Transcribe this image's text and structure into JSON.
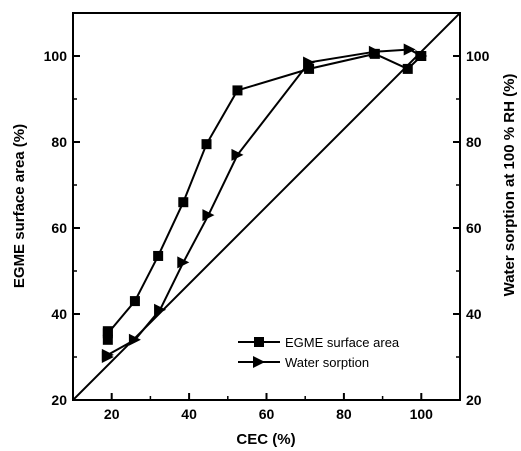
{
  "chart_data": {
    "type": "line",
    "title": "",
    "xlabel": "CEC (%)",
    "ylabel": "EGME surface area (%)",
    "y2label": "Water sorption at 100 % RH (%)",
    "xlim": [
      10,
      110
    ],
    "ylim": [
      20,
      110
    ],
    "y2lim": [
      20,
      110
    ],
    "xticks": [
      "20",
      "40",
      "60",
      "80",
      "100"
    ],
    "yticks": [
      "20",
      "40",
      "60",
      "80",
      "100"
    ],
    "y2ticks": [
      "20",
      "40",
      "60",
      "80",
      "100"
    ],
    "grid": false,
    "legend": {
      "position": "bottom-right"
    },
    "series": [
      {
        "name": "EGME surface area",
        "marker": "square",
        "axis": "left",
        "x": [
          19,
          19,
          19,
          26,
          32,
          38.5,
          44.5,
          52.5,
          71,
          88,
          96.5,
          100
        ],
        "y": [
          34,
          36,
          35.5,
          43,
          53.5,
          66,
          79.5,
          92,
          97,
          100.5,
          97,
          100
        ]
      },
      {
        "name": "Water sorption",
        "marker": "triangle-right",
        "axis": "right",
        "x": [
          19,
          19,
          26,
          32.5,
          38.5,
          45,
          52.5,
          71,
          88,
          97,
          100
        ],
        "y": [
          30,
          30.5,
          34,
          41,
          52,
          63,
          77,
          98.5,
          101,
          101.5,
          100
        ]
      },
      {
        "name": "",
        "role": "reference-line",
        "x": [
          10,
          110
        ],
        "y": [
          20,
          110
        ]
      }
    ]
  }
}
